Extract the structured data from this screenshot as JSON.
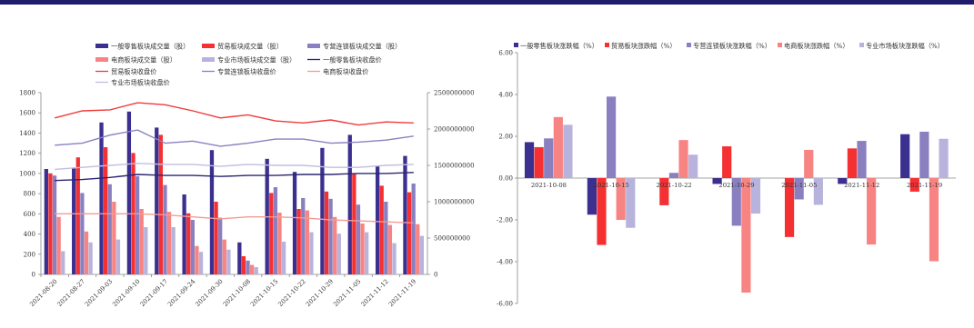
{
  "colors": {
    "topbar": "#1f1c6b",
    "general_vol": "#3b2f8f",
    "trade_vol": "#f53033",
    "chain_vol": "#8a80c0",
    "ecom_vol": "#f78482",
    "market_vol": "#b8b3dc",
    "general_close": "#2b2670",
    "trade_close": "#f03a3a",
    "chain_close": "#8a80c0",
    "ecom_close": "#f39b96",
    "market_close": "#c2bee0"
  },
  "chart_data": [
    {
      "type": "bar+line",
      "title": "",
      "dates": [
        "2021-08-20",
        "2021-08-27",
        "2021-09-03",
        "2021-09-10",
        "2021-09-17",
        "2021-09-24",
        "2021-09-30",
        "2021-10-08",
        "2021-10-15",
        "2021-10-22",
        "2021-10-29",
        "2021-11-05",
        "2021-11-12",
        "2021-11-19"
      ],
      "y_left": {
        "min": 0,
        "max": 1800,
        "ticks": [
          "0",
          "200",
          "400",
          "600",
          "800",
          "1000",
          "1200",
          "1400",
          "1600",
          "1800"
        ]
      },
      "y_right": {
        "min": 0,
        "max": 2500000000,
        "ticks": [
          "0",
          "500000000",
          "1000000000",
          "1500000000",
          "2000000000",
          "2500000000"
        ]
      },
      "legend": [
        "一般零售板块成交量（股）",
        "贸易板块成交量（股）",
        "专营连锁板块成交量（股）",
        "电商板块成交量（股）",
        "专业市场板块成交量（股）",
        "一般零售板块收盘价",
        "贸易板块收盘价",
        "专营连锁板块收盘价",
        "电商板块收盘价",
        "专业市场板块收盘价"
      ],
      "bar_series": [
        {
          "name": "一般零售板块成交量（股）",
          "color_key": "general_vol",
          "values": [
            1450000000,
            1470000000,
            2090000000,
            2240000000,
            2020000000,
            1100000000,
            1710000000,
            440000000,
            1590000000,
            1410000000,
            1740000000,
            1920000000,
            1490000000,
            1630000000
          ]
        },
        {
          "name": "贸易板块成交量（股）",
          "color_key": "trade_vol",
          "values": [
            1390000000,
            1610000000,
            1750000000,
            1670000000,
            1920000000,
            840000000,
            1000000000,
            250000000,
            1120000000,
            900000000,
            1140000000,
            1380000000,
            1220000000,
            1130000000
          ]
        },
        {
          "name": "专营连锁板块成交量（股）",
          "color_key": "chain_vol",
          "values": [
            1360000000,
            1120000000,
            1240000000,
            1350000000,
            1230000000,
            750000000,
            780000000,
            190000000,
            1200000000,
            1050000000,
            1040000000,
            960000000,
            1000000000,
            1250000000
          ]
        },
        {
          "name": "电商板块成交量（股）",
          "color_key": "ecom_vol",
          "values": [
            790000000,
            590000000,
            1000000000,
            900000000,
            860000000,
            390000000,
            480000000,
            130000000,
            850000000,
            880000000,
            790000000,
            700000000,
            680000000,
            690000000
          ]
        },
        {
          "name": "专业市场板块成交量（股）",
          "color_key": "market_vol",
          "values": [
            320000000,
            440000000,
            480000000,
            650000000,
            650000000,
            310000000,
            340000000,
            100000000,
            450000000,
            580000000,
            560000000,
            580000000,
            430000000,
            530000000
          ]
        }
      ],
      "line_series": [
        {
          "name": "一般零售板块收盘价",
          "color_key": "general_close",
          "values": [
            930,
            940,
            960,
            990,
            980,
            980,
            970,
            980,
            980,
            990,
            990,
            1000,
            1000,
            1010
          ]
        },
        {
          "name": "贸易板块收盘价",
          "color_key": "trade_close",
          "values": [
            1550,
            1620,
            1630,
            1700,
            1680,
            1620,
            1550,
            1580,
            1520,
            1500,
            1530,
            1480,
            1510,
            1500
          ]
        },
        {
          "name": "专营连锁板块收盘价",
          "color_key": "chain_close",
          "values": [
            1280,
            1300,
            1380,
            1430,
            1300,
            1320,
            1270,
            1300,
            1340,
            1340,
            1300,
            1310,
            1330,
            1370
          ]
        },
        {
          "name": "电商板块收盘价",
          "color_key": "ecom_close",
          "values": [
            600,
            600,
            600,
            600,
            590,
            570,
            550,
            570,
            570,
            560,
            540,
            530,
            520,
            510
          ]
        },
        {
          "name": "专业市场板块收盘价",
          "color_key": "market_close",
          "values": [
            1040,
            1060,
            1080,
            1100,
            1090,
            1090,
            1070,
            1090,
            1080,
            1080,
            1060,
            1060,
            1080,
            1090
          ]
        }
      ]
    },
    {
      "type": "bar",
      "title": "",
      "categories": [
        "2021-10-08",
        "2021-10-15",
        "2021-10-22",
        "2021-10-29",
        "2021-11-05",
        "2021-11-12",
        "2021-11-19"
      ],
      "y": {
        "min": -6,
        "max": 6,
        "ticks": [
          "6.00",
          "4.00",
          "2.00",
          "0.00",
          "-2.00",
          "-4.00",
          "-6.00"
        ]
      },
      "legend": [
        "一般零售板块涨跌幅（%）",
        "贸易板块涨跌幅（%）",
        "专营连锁板块涨跌幅（%）",
        "电商板块涨跌幅（%）",
        "专业市场板块涨跌幅（%）"
      ],
      "series": [
        {
          "name": "一般零售板块涨跌幅（%）",
          "color_key": "general_vol",
          "values": [
            1.72,
            -1.75,
            0.0,
            -0.28,
            0.0,
            -0.28,
            2.1
          ]
        },
        {
          "name": "贸易板块涨跌幅（%）",
          "color_key": "trade_vol",
          "values": [
            1.48,
            -3.2,
            -1.3,
            1.52,
            -2.82,
            1.42,
            -0.65
          ]
        },
        {
          "name": "专营连锁板块涨跌幅（%）",
          "color_key": "chain_vol",
          "values": [
            1.9,
            3.9,
            0.25,
            -2.28,
            -1.02,
            1.78,
            2.22
          ]
        },
        {
          "name": "电商板块涨跌幅（%）",
          "color_key": "ecom_vol",
          "values": [
            2.92,
            -2.0,
            1.82,
            -5.48,
            1.35,
            -3.18,
            -3.98
          ]
        },
        {
          "name": "专业市场板块涨跌幅（%）",
          "color_key": "market_vol",
          "values": [
            2.55,
            -2.38,
            1.12,
            -1.7,
            -1.28,
            0.0,
            1.88
          ]
        }
      ]
    }
  ]
}
